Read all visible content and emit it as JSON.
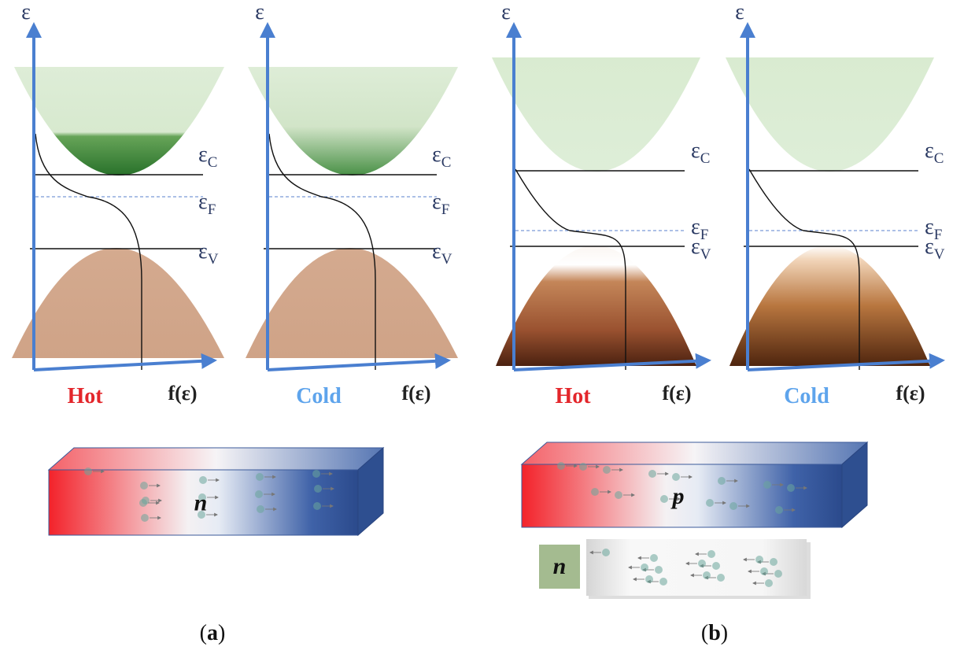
{
  "figures": [
    {
      "panels": [
        {
          "y_axis": "ε",
          "x_axis": "f(ε)",
          "temperature": "Hot",
          "levels": [
            {
              "symbol": "ε",
              "subscript": "C"
            },
            {
              "symbol": "ε",
              "subscript": "F"
            },
            {
              "symbol": "ε",
              "subscript": "V"
            }
          ]
        },
        {
          "y_axis": "ε",
          "x_axis": "f(ε)",
          "temperature": "Cold",
          "levels": [
            {
              "symbol": "ε",
              "subscript": "C"
            },
            {
              "symbol": "ε",
              "subscript": "F"
            },
            {
              "symbol": "ε",
              "subscript": "V"
            }
          ]
        }
      ],
      "bar": {
        "label": "n"
      },
      "caption": {
        "open": "(",
        "letter": "a",
        "close": ")"
      }
    },
    {
      "panels": [
        {
          "y_axis": "ε",
          "x_axis": "f(ε)",
          "temperature": "Hot",
          "levels": [
            {
              "symbol": "ε",
              "subscript": "C"
            },
            {
              "symbol": "ε",
              "subscript": "F"
            },
            {
              "symbol": "ε",
              "subscript": "V"
            }
          ]
        },
        {
          "y_axis": "ε",
          "x_axis": "f(ε)",
          "temperature": "Cold",
          "levels": [
            {
              "symbol": "ε",
              "subscript": "C"
            },
            {
              "symbol": "ε",
              "subscript": "F"
            },
            {
              "symbol": "ε",
              "subscript": "V"
            }
          ]
        }
      ],
      "bar": {
        "label": "p"
      },
      "inset": {
        "label": "n"
      },
      "caption": {
        "open": "(",
        "letter": "b",
        "close": ")"
      }
    }
  ]
}
